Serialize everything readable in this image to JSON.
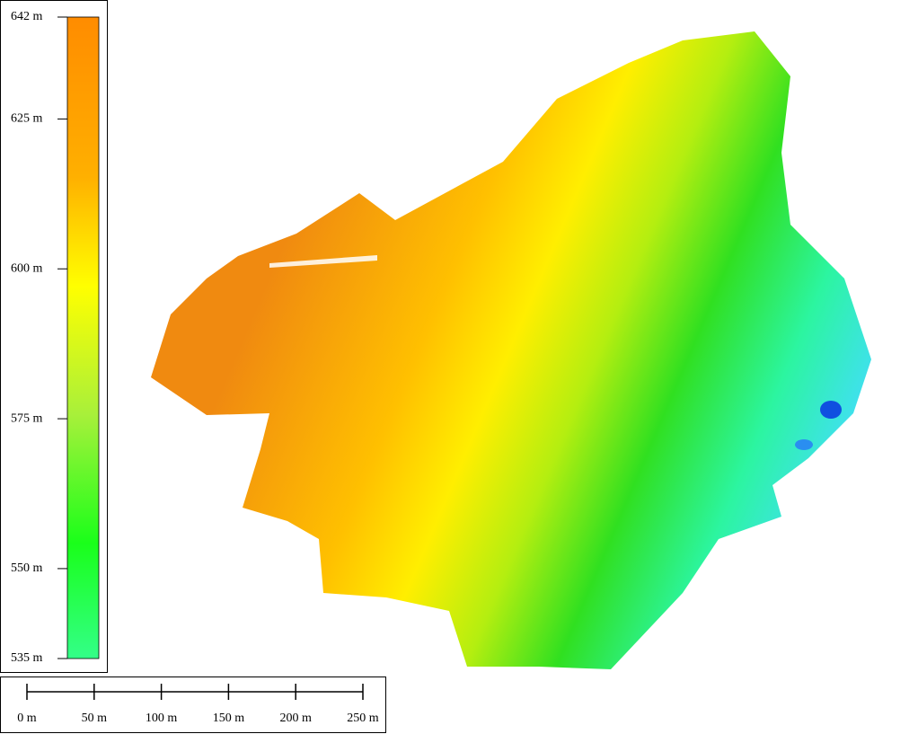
{
  "colorbar": {
    "range": [
      535,
      642
    ],
    "ticks": [
      {
        "value": 642,
        "label": "642 m"
      },
      {
        "value": 625,
        "label": "625 m"
      },
      {
        "value": 600,
        "label": "600 m"
      },
      {
        "value": 575,
        "label": "575 m"
      },
      {
        "value": 550,
        "label": "550 m"
      },
      {
        "value": 535,
        "label": "535 m"
      }
    ]
  },
  "scale_bar": {
    "range": [
      0,
      250
    ],
    "ticks": [
      {
        "value": 0,
        "label": "0 m"
      },
      {
        "value": 50,
        "label": "50 m"
      },
      {
        "value": 100,
        "label": "100 m"
      },
      {
        "value": 150,
        "label": "150 m"
      },
      {
        "value": 200,
        "label": "200 m"
      },
      {
        "value": 250,
        "label": "250 m"
      }
    ]
  }
}
